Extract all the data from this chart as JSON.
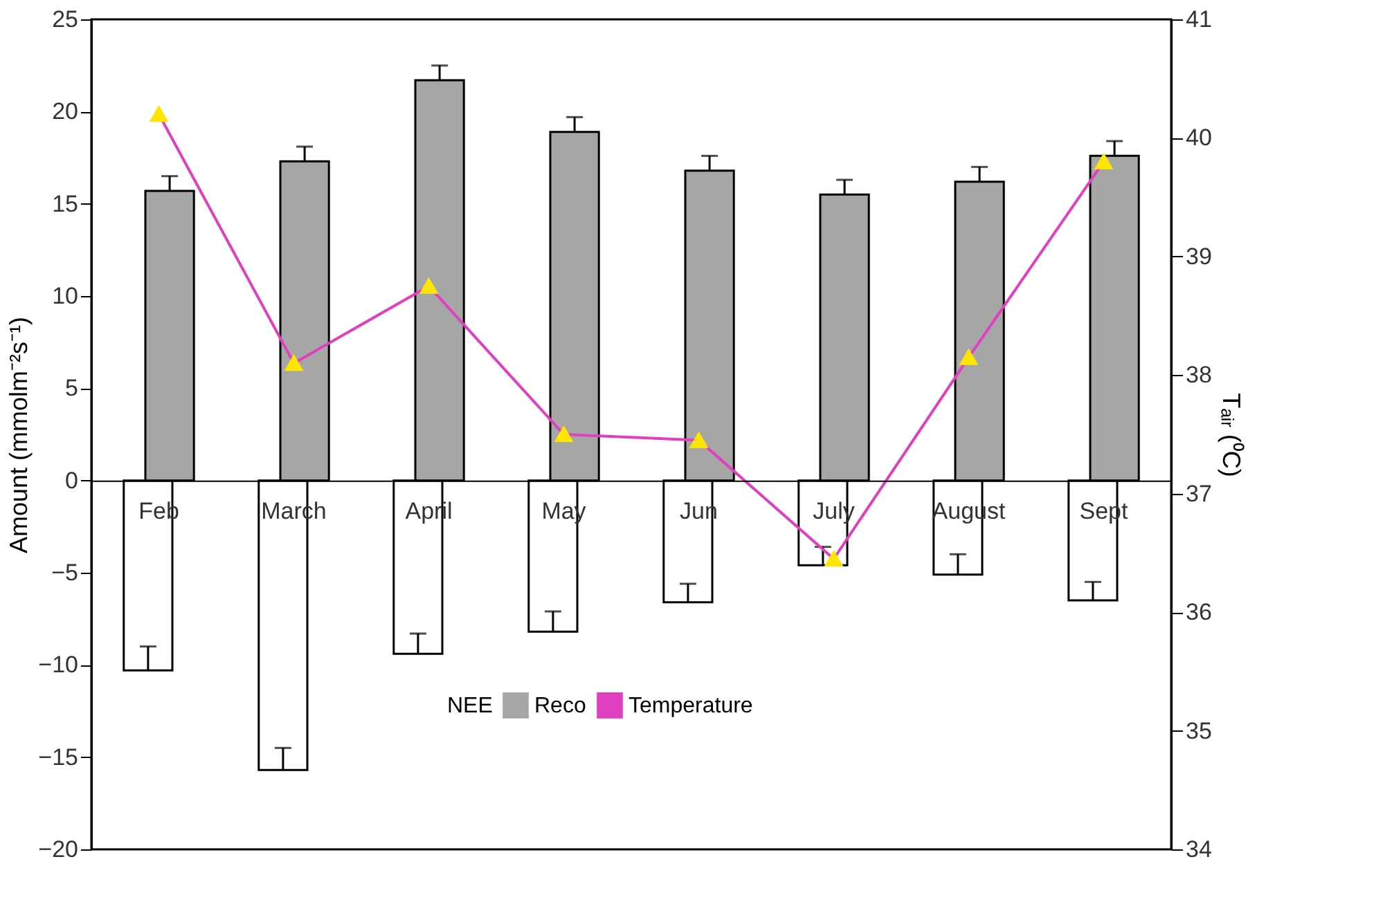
{
  "chart_data": {
    "type": "bar",
    "categories": [
      "Feb",
      "March",
      "April",
      "May",
      "Jun",
      "July",
      "August",
      "Sept"
    ],
    "ylabel": "Amount (mmolm⁻²s⁻¹)",
    "y2label": "Tₐᵢᵣ (⁰C)",
    "ylim": [
      -20,
      25
    ],
    "yticks": [
      -20,
      -15,
      -10,
      -5,
      0,
      5,
      10,
      15,
      20,
      25
    ],
    "y2lim": [
      34,
      41
    ],
    "y2ticks": [
      34,
      35,
      36,
      37,
      38,
      39,
      40,
      41
    ],
    "series": [
      {
        "name": "NEE",
        "color": "#ffffff",
        "values": [
          -10.3,
          -15.7,
          -9.4,
          -8.2,
          -6.6,
          -4.6,
          -5.1,
          -6.5
        ],
        "errors": [
          [
            -10.3,
            -9.0
          ],
          [
            -15.7,
            -14.5
          ],
          [
            -9.4,
            -8.3
          ],
          [
            -8.2,
            -7.1
          ],
          [
            -6.6,
            -5.6
          ],
          [
            -4.6,
            -3.6
          ],
          [
            -5.1,
            -4.0
          ],
          [
            -6.5,
            -5.5
          ]
        ]
      },
      {
        "name": "Reco",
        "color": "#a6a6a6",
        "values": [
          15.7,
          17.3,
          21.7,
          18.9,
          16.8,
          15.5,
          16.2,
          17.6
        ],
        "errors": [
          [
            15.7,
            16.5
          ],
          [
            17.3,
            18.1
          ],
          [
            21.7,
            22.5
          ],
          [
            18.9,
            19.7
          ],
          [
            16.8,
            17.6
          ],
          [
            15.5,
            16.3
          ],
          [
            16.2,
            17.0
          ],
          [
            17.6,
            18.4
          ]
        ]
      },
      {
        "name": "Temperature",
        "type": "line",
        "axis": "y2",
        "color": "#e040c0",
        "marker": "triangle",
        "values": [
          40.2,
          38.1,
          38.75,
          37.5,
          37.45,
          36.45,
          38.15,
          39.8
        ]
      }
    ],
    "legend": "bottom",
    "grid": false
  }
}
